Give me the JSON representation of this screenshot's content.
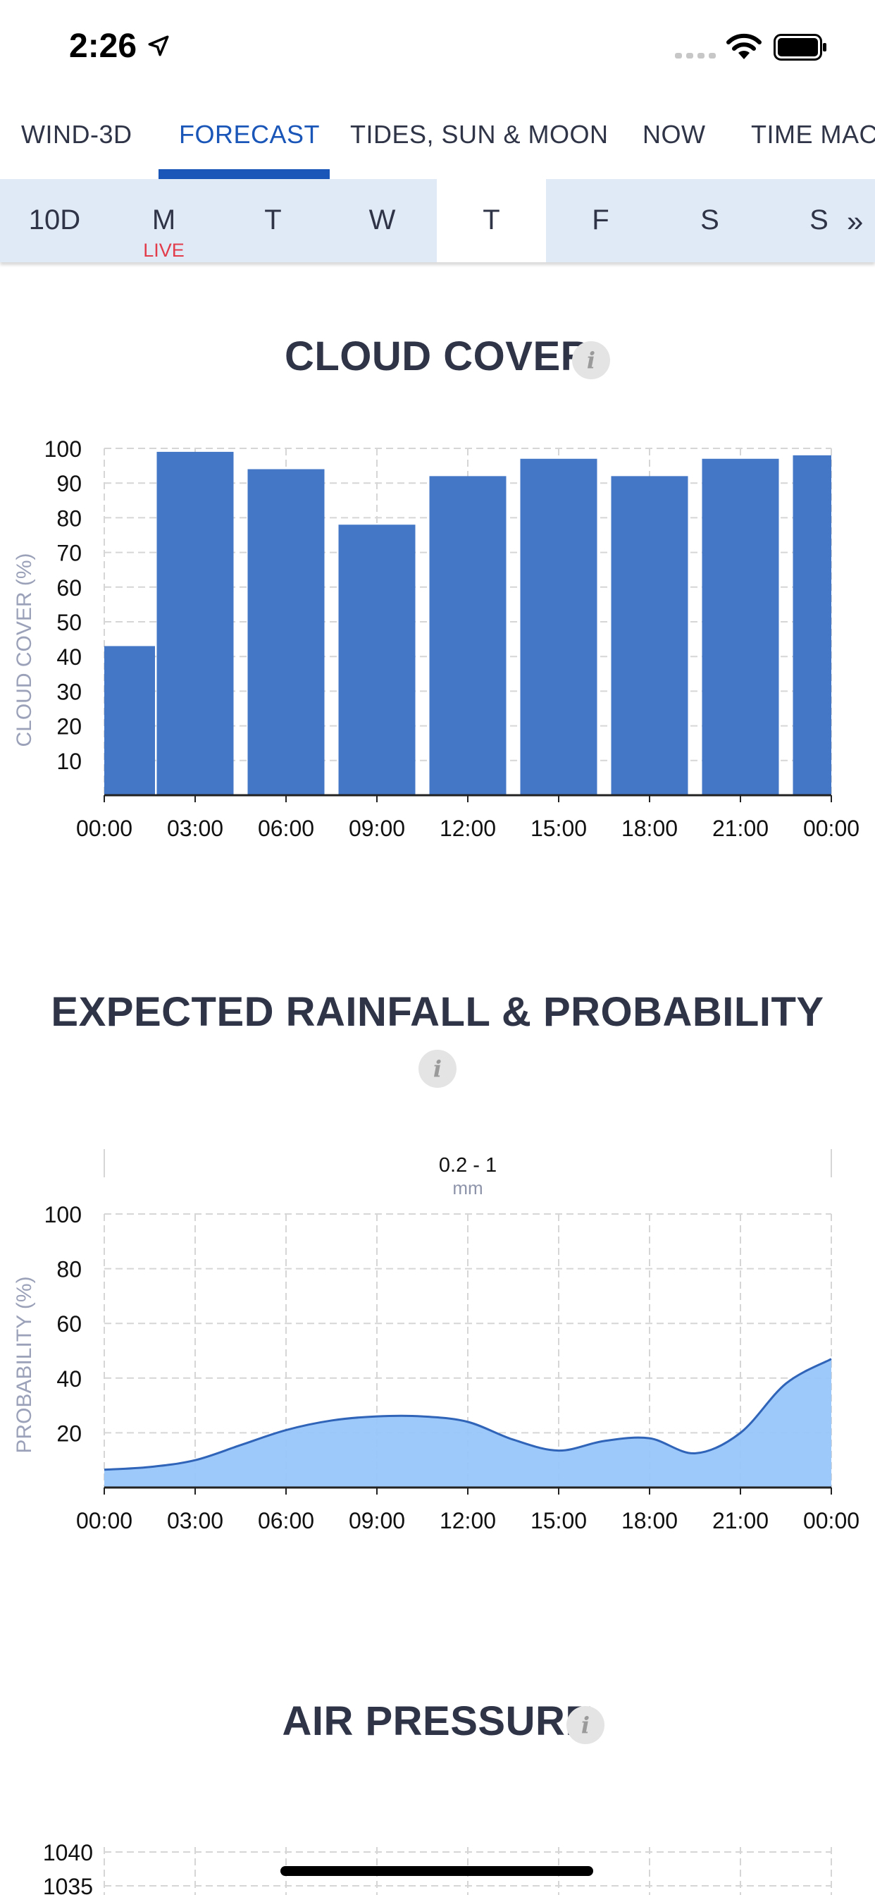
{
  "status": {
    "time": "2:26"
  },
  "tabs": [
    {
      "label": "WIND-3D",
      "active": false
    },
    {
      "label": "FORECAST",
      "active": true
    },
    {
      "label": "TIDES, SUN & MOON",
      "active": false
    },
    {
      "label": "NOW",
      "active": false
    },
    {
      "label": "TIME MAC",
      "active": false
    }
  ],
  "days": [
    {
      "label": "10D"
    },
    {
      "label": "M",
      "badge": "LIVE"
    },
    {
      "label": "T"
    },
    {
      "label": "W"
    },
    {
      "label": "T",
      "selected": true
    },
    {
      "label": "F"
    },
    {
      "label": "S"
    },
    {
      "label": "S"
    }
  ],
  "more_label": "»",
  "sections": {
    "cloud_title": "CLOUD COVER",
    "rain_title": "EXPECTED RAINFALL & PROBABILITY",
    "pressure_title": "AIR PRESSURE"
  },
  "colors": {
    "accent": "#1a56b8",
    "bar": "#4477c6",
    "area": "#98c5fa",
    "area_line": "#2f64b8",
    "live": "#e23c4b"
  },
  "chart_data": [
    {
      "type": "bar",
      "ylabel": "CLOUD COVER (%)",
      "ylim": [
        0,
        100
      ],
      "yticks": [
        10,
        20,
        30,
        40,
        50,
        60,
        70,
        80,
        90,
        100
      ],
      "xticks": [
        "00:00",
        "03:00",
        "06:00",
        "09:00",
        "12:00",
        "15:00",
        "18:00",
        "21:00",
        "00:00"
      ],
      "grid": true,
      "x_hours": [
        0,
        3,
        6,
        9,
        12,
        15,
        18,
        21,
        24
      ],
      "values": [
        43,
        99,
        94,
        78,
        92,
        97,
        92,
        97,
        98
      ]
    },
    {
      "type": "area",
      "ylabel": "PROBABILITY (%)",
      "ylim": [
        0,
        100
      ],
      "yticks": [
        20,
        40,
        60,
        80,
        100
      ],
      "xticks": [
        "00:00",
        "03:00",
        "06:00",
        "09:00",
        "12:00",
        "15:00",
        "18:00",
        "21:00",
        "00:00"
      ],
      "grid": true,
      "annotation": {
        "value": "0.2 - 1",
        "unit": "mm"
      },
      "x_hours": [
        0,
        1.5,
        3,
        4.5,
        6,
        7.5,
        9,
        10.5,
        12,
        13.5,
        15,
        16.5,
        18,
        19.5,
        21,
        22.5,
        24
      ],
      "values": [
        6.5,
        7.5,
        10,
        15.5,
        21,
        24.5,
        26,
        26,
        24,
        17.5,
        13.5,
        17,
        18,
        12.5,
        20,
        38,
        47
      ]
    },
    {
      "type": "line",
      "yticks": [
        1035,
        1040
      ]
    }
  ]
}
